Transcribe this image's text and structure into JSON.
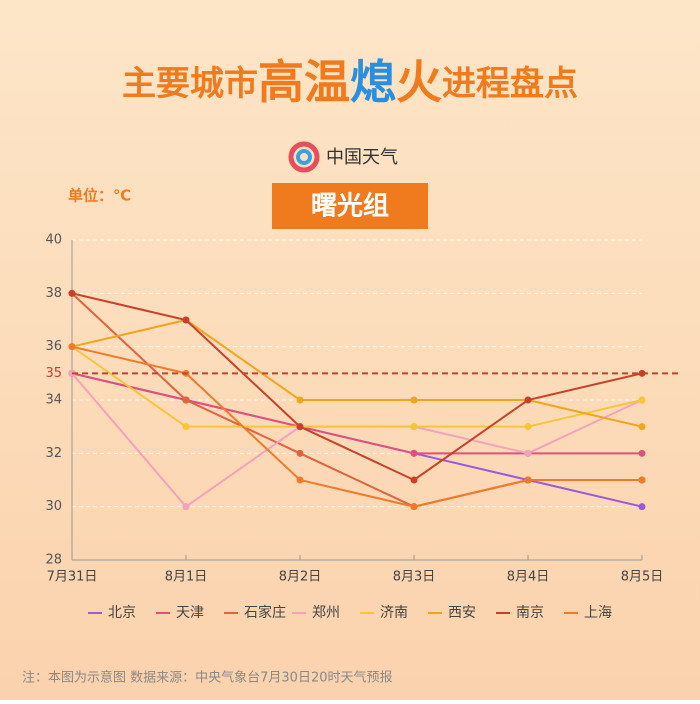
{
  "chart_data": {
    "type": "line",
    "title_parts": [
      "主要城市",
      "高温",
      "熄",
      "火",
      "进程盘点"
    ],
    "logo_text": "中国天气",
    "group": "曙光组",
    "unit": "单位：℃",
    "categories": [
      "7月31日",
      "8月1日",
      "8月2日",
      "8月3日",
      "8月4日",
      "8月5日"
    ],
    "series": [
      {
        "name": "北京",
        "color": "#9b5ad6",
        "values": [
          35,
          34,
          33,
          32,
          31,
          30
        ]
      },
      {
        "name": "天津",
        "color": "#e0507a",
        "values": [
          35,
          34,
          33,
          32,
          32,
          32
        ]
      },
      {
        "name": "石家庄",
        "color": "#e0623e",
        "values": [
          38,
          34,
          32,
          30,
          31,
          31
        ]
      },
      {
        "name": "郑州",
        "color": "#f2a3bb",
        "values": [
          35,
          30,
          33,
          33,
          32,
          34
        ]
      },
      {
        "name": "济南",
        "color": "#f7c53a",
        "values": [
          36,
          33,
          33,
          33,
          33,
          34
        ]
      },
      {
        "name": "西安",
        "color": "#f0a51c",
        "values": [
          36,
          37,
          34,
          34,
          34,
          33
        ]
      },
      {
        "name": "南京",
        "color": "#c8402a",
        "values": [
          38,
          37,
          33,
          31,
          34,
          35
        ]
      },
      {
        "name": "上海",
        "color": "#f07a2a",
        "values": [
          36,
          35,
          31,
          30,
          31,
          31
        ]
      }
    ],
    "ylim": [
      28,
      40
    ],
    "yticks": [
      28,
      30,
      32,
      34,
      36,
      38,
      40
    ],
    "reference_line": 35,
    "reference_color": "#c8402a",
    "grid": true,
    "note": "注：本图为示意图  数据来源：中央气象台7月30日20时天气预报"
  }
}
